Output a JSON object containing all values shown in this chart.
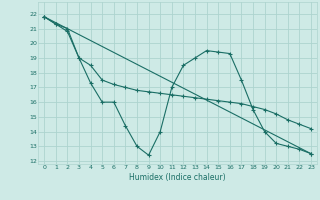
{
  "xlabel": "Humidex (Indice chaleur)",
  "bg_color": "#ceeae6",
  "grid_color": "#add4cf",
  "line_color": "#1a6e65",
  "xlim": [
    -0.5,
    23.5
  ],
  "ylim": [
    11.8,
    22.8
  ],
  "yticks": [
    12,
    13,
    14,
    15,
    16,
    17,
    18,
    19,
    20,
    21,
    22
  ],
  "xticks": [
    0,
    1,
    2,
    3,
    4,
    5,
    6,
    7,
    8,
    9,
    10,
    11,
    12,
    13,
    14,
    15,
    16,
    17,
    18,
    19,
    20,
    21,
    22,
    23
  ],
  "line1_x": [
    0,
    1,
    2,
    3,
    4,
    5,
    6,
    7,
    8,
    9,
    10,
    11,
    12,
    13,
    14,
    15,
    16,
    17,
    18,
    19,
    20,
    21,
    22,
    23
  ],
  "line1_y": [
    21.8,
    21.3,
    20.8,
    19.0,
    18.5,
    17.5,
    17.2,
    17.0,
    16.8,
    16.7,
    16.6,
    16.5,
    16.4,
    16.3,
    16.2,
    16.1,
    16.0,
    15.9,
    15.7,
    15.5,
    15.2,
    14.8,
    14.5,
    14.2
  ],
  "line2_x": [
    0,
    1,
    2,
    3,
    4,
    5,
    6,
    7,
    8,
    9,
    10,
    11,
    12,
    13,
    14,
    15,
    16,
    17,
    18,
    19,
    20,
    21,
    22,
    23
  ],
  "line2_y": [
    21.8,
    21.3,
    21.0,
    19.0,
    17.3,
    16.0,
    16.0,
    14.4,
    13.0,
    12.4,
    14.0,
    17.0,
    18.5,
    19.0,
    19.5,
    19.4,
    19.3,
    17.5,
    15.5,
    14.0,
    13.2,
    13.0,
    12.8,
    12.5
  ],
  "line3_x": [
    0,
    23
  ],
  "line3_y": [
    21.8,
    12.5
  ]
}
